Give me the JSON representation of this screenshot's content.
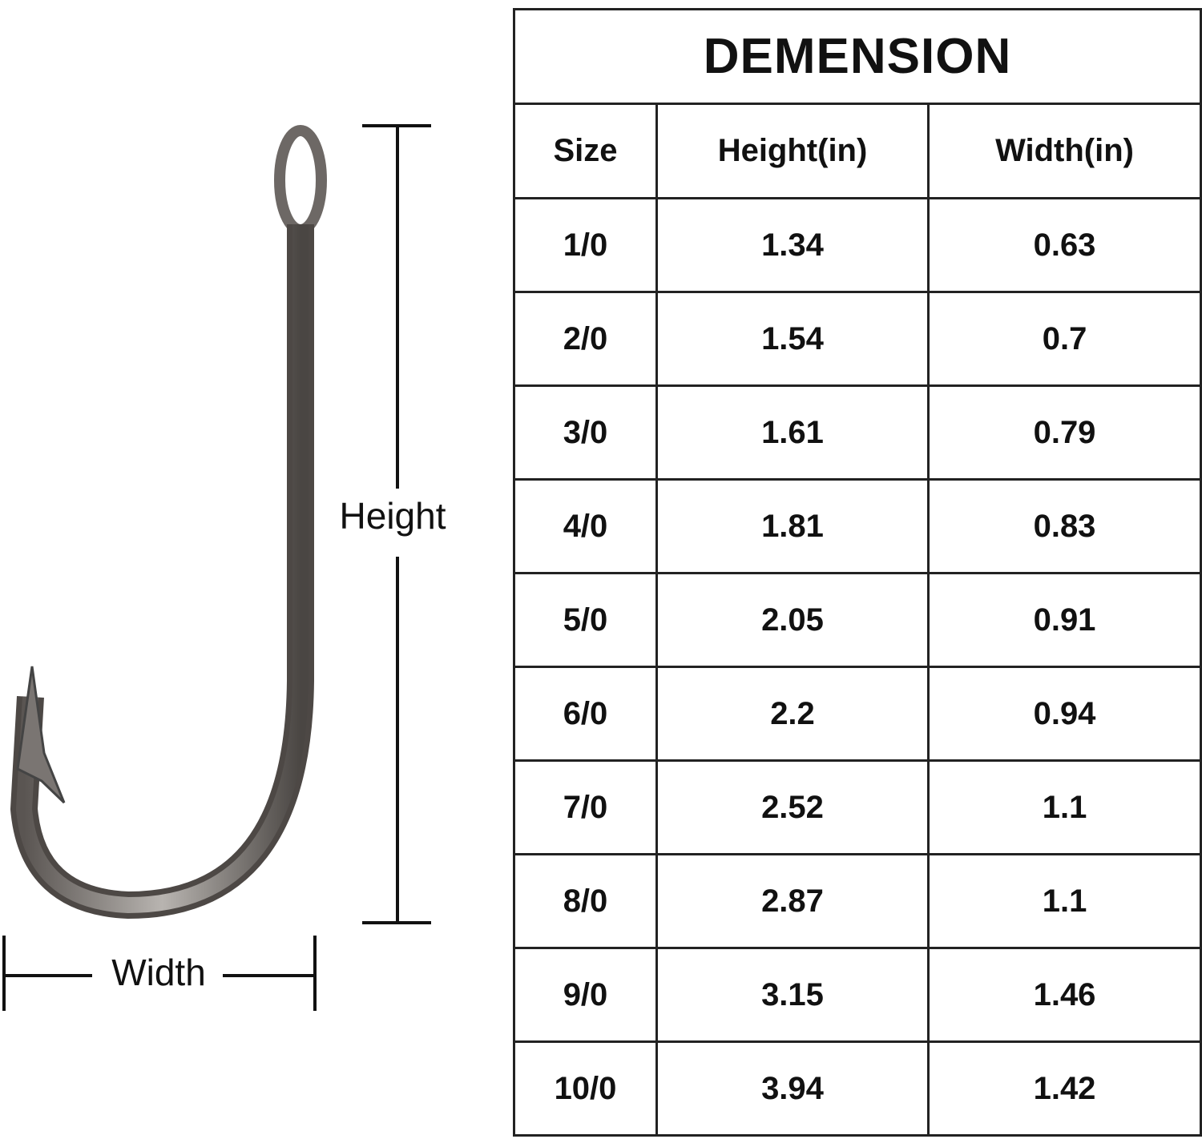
{
  "labels": {
    "height": "Height",
    "width": "Width"
  },
  "table": {
    "title": "DEMENSION",
    "header": [
      "Size",
      "Height(in)",
      "Width(in)"
    ],
    "rows": [
      [
        "1/0",
        "1.34",
        "0.63"
      ],
      [
        "2/0",
        "1.54",
        "0.7"
      ],
      [
        "3/0",
        "1.61",
        "0.79"
      ],
      [
        "4/0",
        "1.81",
        "0.83"
      ],
      [
        "5/0",
        "2.05",
        "0.91"
      ],
      [
        "6/0",
        "2.2",
        "0.94"
      ],
      [
        "7/0",
        "2.52",
        "1.1"
      ],
      [
        "8/0",
        "2.87",
        "1.1"
      ],
      [
        "9/0",
        "3.15",
        "1.46"
      ],
      [
        "10/0",
        "3.94",
        "1.42"
      ]
    ]
  }
}
